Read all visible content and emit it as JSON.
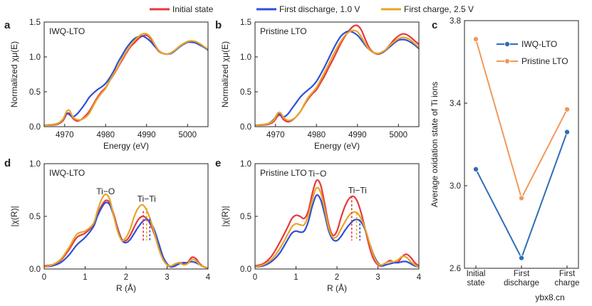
{
  "legend": {
    "items": [
      {
        "label": "Initial state",
        "color": "#e8373a"
      },
      {
        "label": "First discharge, 1.0 V",
        "color": "#2f4fd8"
      },
      {
        "label": "First charge, 2.5 V",
        "color": "#e6a526"
      }
    ]
  },
  "watermark": "ybx8.cn",
  "chart_data": [
    {
      "id": "a",
      "panel_letter": "a",
      "type": "line",
      "inset_label": "IWQ-LTO",
      "xlabel": "Energy (eV)",
      "ylabel": "Normalized χμ(E)",
      "xlim": [
        4965,
        5005
      ],
      "ylim": [
        0,
        1.5
      ],
      "xticks": [
        4970,
        4980,
        4990,
        5000
      ],
      "yticks": [
        0.0,
        0.5,
        1.0,
        1.5
      ],
      "tick_labels_x": [
        "4970",
        "4980",
        "4990",
        "5000"
      ],
      "tick_labels_y": [
        "0.0",
        "0.5",
        "1.0",
        "1.5"
      ],
      "x": [
        4965,
        4968,
        4969.5,
        4970.5,
        4971.2,
        4972,
        4973,
        4974,
        4975,
        4976,
        4977,
        4978,
        4979,
        4980,
        4981,
        4982,
        4983,
        4984,
        4985,
        4986,
        4987,
        4988,
        4989,
        4990,
        4991,
        4992,
        4993,
        4994,
        4995,
        4996,
        4997,
        4998,
        4999,
        5000,
        5001,
        5002,
        5003,
        5004,
        5005
      ],
      "series": [
        {
          "name": "Initial state",
          "color": "#e8373a",
          "values": [
            0.02,
            0.03,
            0.08,
            0.18,
            0.19,
            0.12,
            0.08,
            0.1,
            0.15,
            0.22,
            0.32,
            0.42,
            0.5,
            0.56,
            0.66,
            0.75,
            0.85,
            0.95,
            1.05,
            1.14,
            1.2,
            1.26,
            1.3,
            1.31,
            1.26,
            1.16,
            1.08,
            1.05,
            1.04,
            1.06,
            1.1,
            1.15,
            1.19,
            1.22,
            1.23,
            1.21,
            1.18,
            1.14,
            1.1
          ]
        },
        {
          "name": "First discharge, 1.0 V",
          "color": "#2f4fd8",
          "values": [
            0.02,
            0.04,
            0.1,
            0.19,
            0.17,
            0.14,
            0.18,
            0.25,
            0.33,
            0.42,
            0.48,
            0.53,
            0.57,
            0.62,
            0.7,
            0.8,
            0.92,
            1.02,
            1.12,
            1.2,
            1.26,
            1.29,
            1.3,
            1.27,
            1.22,
            1.15,
            1.09,
            1.05,
            1.04,
            1.05,
            1.09,
            1.14,
            1.18,
            1.21,
            1.21,
            1.2,
            1.17,
            1.14,
            1.1
          ]
        },
        {
          "name": "First charge, 2.5 V",
          "color": "#e6a526",
          "values": [
            0.02,
            0.04,
            0.1,
            0.22,
            0.23,
            0.14,
            0.1,
            0.1,
            0.13,
            0.19,
            0.3,
            0.4,
            0.48,
            0.55,
            0.66,
            0.76,
            0.86,
            0.97,
            1.07,
            1.16,
            1.23,
            1.29,
            1.33,
            1.33,
            1.28,
            1.18,
            1.09,
            1.05,
            1.04,
            1.06,
            1.1,
            1.15,
            1.19,
            1.22,
            1.23,
            1.22,
            1.19,
            1.15,
            1.11
          ]
        }
      ]
    },
    {
      "id": "b",
      "panel_letter": "b",
      "type": "line",
      "inset_label": "Pristine LTO",
      "xlabel": "Energy (eV)",
      "ylabel": "Normalized χμ(E)",
      "xlim": [
        4965,
        5005
      ],
      "ylim": [
        0,
        1.5
      ],
      "xticks": [
        4970,
        4980,
        4990,
        5000
      ],
      "yticks": [
        0.0,
        0.5,
        1.0,
        1.5
      ],
      "tick_labels_x": [
        "4970",
        "4980",
        "4990",
        "5000"
      ],
      "tick_labels_y": [
        "0.0",
        "0.5",
        "1.0",
        "1.5"
      ],
      "x": [
        4965,
        4968,
        4969.5,
        4970.5,
        4971.2,
        4972,
        4973,
        4974,
        4975,
        4976,
        4977,
        4978,
        4979,
        4980,
        4981,
        4982,
        4983,
        4984,
        4985,
        4986,
        4987,
        4988,
        4989,
        4990,
        4991,
        4992,
        4993,
        4994,
        4995,
        4996,
        4997,
        4998,
        4999,
        5000,
        5001,
        5002,
        5003,
        5004,
        5005
      ],
      "series": [
        {
          "name": "Initial state",
          "color": "#e8373a",
          "values": [
            0.02,
            0.03,
            0.07,
            0.15,
            0.16,
            0.1,
            0.07,
            0.09,
            0.14,
            0.21,
            0.31,
            0.4,
            0.47,
            0.53,
            0.63,
            0.73,
            0.85,
            0.96,
            1.08,
            1.2,
            1.3,
            1.38,
            1.44,
            1.45,
            1.38,
            1.24,
            1.12,
            1.06,
            1.04,
            1.06,
            1.11,
            1.18,
            1.25,
            1.3,
            1.33,
            1.32,
            1.28,
            1.23,
            1.18
          ]
        },
        {
          "name": "First discharge, 1.0 V",
          "color": "#2f4fd8",
          "values": [
            0.02,
            0.04,
            0.1,
            0.18,
            0.17,
            0.14,
            0.18,
            0.26,
            0.34,
            0.42,
            0.48,
            0.53,
            0.58,
            0.65,
            0.75,
            0.86,
            0.98,
            1.1,
            1.21,
            1.3,
            1.35,
            1.37,
            1.35,
            1.31,
            1.24,
            1.16,
            1.1,
            1.06,
            1.05,
            1.06,
            1.1,
            1.15,
            1.2,
            1.24,
            1.25,
            1.24,
            1.21,
            1.17,
            1.12
          ]
        },
        {
          "name": "First charge, 2.5 V",
          "color": "#e6a526",
          "values": [
            0.02,
            0.04,
            0.09,
            0.19,
            0.2,
            0.13,
            0.09,
            0.1,
            0.14,
            0.21,
            0.32,
            0.42,
            0.49,
            0.56,
            0.67,
            0.78,
            0.9,
            1.02,
            1.13,
            1.23,
            1.31,
            1.36,
            1.38,
            1.36,
            1.28,
            1.18,
            1.1,
            1.06,
            1.05,
            1.07,
            1.11,
            1.17,
            1.22,
            1.26,
            1.28,
            1.27,
            1.24,
            1.19,
            1.14
          ]
        }
      ]
    },
    {
      "id": "d",
      "panel_letter": "d",
      "type": "line",
      "inset_label": "IWQ-LTO",
      "xlabel": "R (Å)",
      "ylabel": "|χ(R)|",
      "xlim": [
        0,
        4
      ],
      "ylim": [
        0,
        1.0
      ],
      "xticks": [
        0,
        1,
        2,
        3,
        4
      ],
      "yticks": [
        0.0,
        0.5,
        1.0
      ],
      "tick_labels_x": [
        "0",
        "1",
        "2",
        "3",
        "4"
      ],
      "tick_labels_y": [
        "0.0",
        "0.5",
        "1.0"
      ],
      "annotations": [
        {
          "text": "Ti−O",
          "x": 1.5,
          "y": 0.71
        },
        {
          "text": "Ti−Ti",
          "x": 2.5,
          "y": 0.64
        }
      ],
      "dashed_markers": [
        {
          "color": "#e8373a",
          "x": 2.42,
          "y": 0.55
        },
        {
          "color": "#e6a526",
          "x": 2.5,
          "y": 0.58
        },
        {
          "color": "#2f4fd8",
          "x": 2.58,
          "y": 0.48
        }
      ],
      "x": [
        0,
        0.2,
        0.4,
        0.6,
        0.8,
        1.0,
        1.2,
        1.3,
        1.4,
        1.5,
        1.6,
        1.7,
        1.8,
        1.9,
        2.0,
        2.1,
        2.2,
        2.3,
        2.4,
        2.5,
        2.6,
        2.7,
        2.8,
        2.9,
        3.0,
        3.1,
        3.2,
        3.3,
        3.4,
        3.5,
        3.6,
        3.7,
        3.8,
        3.9,
        4.0
      ],
      "series": [
        {
          "name": "Initial state",
          "color": "#e8373a",
          "values": [
            0.03,
            0.04,
            0.08,
            0.18,
            0.3,
            0.34,
            0.42,
            0.52,
            0.6,
            0.65,
            0.63,
            0.52,
            0.38,
            0.28,
            0.27,
            0.32,
            0.4,
            0.47,
            0.5,
            0.48,
            0.42,
            0.32,
            0.2,
            0.1,
            0.04,
            0.02,
            0.04,
            0.06,
            0.05,
            0.06,
            0.11,
            0.1,
            0.05,
            0.02,
            0.01
          ]
        },
        {
          "name": "First discharge, 1.0 V",
          "color": "#2f4fd8",
          "values": [
            0.02,
            0.03,
            0.06,
            0.13,
            0.23,
            0.3,
            0.4,
            0.5,
            0.58,
            0.63,
            0.61,
            0.5,
            0.36,
            0.27,
            0.25,
            0.28,
            0.34,
            0.4,
            0.45,
            0.47,
            0.44,
            0.36,
            0.24,
            0.12,
            0.05,
            0.02,
            0.03,
            0.05,
            0.06,
            0.06,
            0.07,
            0.06,
            0.04,
            0.02,
            0.01
          ]
        },
        {
          "name": "First charge, 2.5 V",
          "color": "#e6a526",
          "values": [
            0.02,
            0.04,
            0.09,
            0.2,
            0.33,
            0.36,
            0.43,
            0.55,
            0.66,
            0.71,
            0.66,
            0.5,
            0.35,
            0.27,
            0.3,
            0.38,
            0.5,
            0.58,
            0.61,
            0.56,
            0.46,
            0.33,
            0.19,
            0.09,
            0.04,
            0.03,
            0.05,
            0.06,
            0.04,
            0.05,
            0.09,
            0.08,
            0.04,
            0.02,
            0.01
          ]
        }
      ]
    },
    {
      "id": "e",
      "panel_letter": "e",
      "type": "line",
      "inset_label": "Pristine LTO",
      "xlabel": "R (Å)",
      "ylabel": "|χ(R)|",
      "xlim": [
        0,
        4
      ],
      "ylim": [
        0,
        1.0
      ],
      "xticks": [
        0,
        1,
        2,
        3,
        4
      ],
      "yticks": [
        0.0,
        0.5,
        1.0
      ],
      "tick_labels_x": [
        "0",
        "1",
        "2",
        "3",
        "4"
      ],
      "tick_labels_y": [
        "0.0",
        "0.5",
        "1.0"
      ],
      "annotations": [
        {
          "text": "Ti−O",
          "x": 1.52,
          "y": 0.88
        },
        {
          "text": "Ti−Ti",
          "x": 2.5,
          "y": 0.72
        }
      ],
      "dashed_markers": [
        {
          "color": "#e8373a",
          "x": 2.36,
          "y": 0.69
        },
        {
          "color": "#e6a526",
          "x": 2.48,
          "y": 0.53
        },
        {
          "color": "#2f4fd8",
          "x": 2.56,
          "y": 0.47
        }
      ],
      "x": [
        0,
        0.2,
        0.4,
        0.6,
        0.8,
        0.9,
        1.0,
        1.1,
        1.2,
        1.3,
        1.4,
        1.5,
        1.6,
        1.7,
        1.8,
        1.9,
        2.0,
        2.1,
        2.2,
        2.3,
        2.4,
        2.5,
        2.6,
        2.7,
        2.8,
        2.9,
        3.0,
        3.1,
        3.2,
        3.3,
        3.4,
        3.5,
        3.6,
        3.7,
        3.8,
        3.9,
        4.0
      ],
      "series": [
        {
          "name": "Initial state",
          "color": "#e8373a",
          "values": [
            0.03,
            0.05,
            0.12,
            0.25,
            0.4,
            0.48,
            0.51,
            0.5,
            0.48,
            0.55,
            0.72,
            0.84,
            0.8,
            0.62,
            0.42,
            0.32,
            0.36,
            0.49,
            0.6,
            0.67,
            0.69,
            0.64,
            0.52,
            0.36,
            0.2,
            0.09,
            0.04,
            0.03,
            0.06,
            0.08,
            0.06,
            0.07,
            0.12,
            0.14,
            0.11,
            0.06,
            0.03
          ]
        },
        {
          "name": "First discharge, 1.0 V",
          "color": "#2f4fd8",
          "values": [
            0.02,
            0.03,
            0.07,
            0.15,
            0.28,
            0.34,
            0.36,
            0.35,
            0.36,
            0.45,
            0.6,
            0.7,
            0.66,
            0.52,
            0.36,
            0.28,
            0.27,
            0.31,
            0.37,
            0.42,
            0.46,
            0.47,
            0.44,
            0.36,
            0.24,
            0.13,
            0.06,
            0.03,
            0.04,
            0.05,
            0.06,
            0.06,
            0.07,
            0.07,
            0.05,
            0.03,
            0.02
          ]
        },
        {
          "name": "First charge, 2.5 V",
          "color": "#e6a526",
          "values": [
            0.02,
            0.04,
            0.09,
            0.19,
            0.33,
            0.4,
            0.43,
            0.42,
            0.42,
            0.51,
            0.66,
            0.77,
            0.73,
            0.57,
            0.39,
            0.3,
            0.31,
            0.38,
            0.45,
            0.51,
            0.54,
            0.53,
            0.47,
            0.37,
            0.24,
            0.12,
            0.05,
            0.04,
            0.06,
            0.07,
            0.07,
            0.09,
            0.12,
            0.11,
            0.07,
            0.04,
            0.02
          ]
        }
      ]
    },
    {
      "id": "c",
      "panel_letter": "c",
      "type": "line",
      "ylabel": "Average oxidation state of Ti ions",
      "ylim": [
        2.6,
        3.8
      ],
      "yticks": [
        2.6,
        3.0,
        3.4,
        3.8
      ],
      "tick_labels_y": [
        "2.6",
        "3.0",
        "3.4",
        "3.8"
      ],
      "categories": [
        [
          "Initial",
          "state"
        ],
        [
          "First",
          "discharge"
        ],
        [
          "First",
          "charge"
        ]
      ],
      "series": [
        {
          "name": "IWQ-LTO",
          "color": "#2e6fb8",
          "values": [
            3.08,
            2.65,
            3.26
          ]
        },
        {
          "name": "Pristine LTO",
          "color": "#f0995a",
          "values": [
            3.71,
            2.94,
            3.37
          ]
        }
      ]
    }
  ]
}
